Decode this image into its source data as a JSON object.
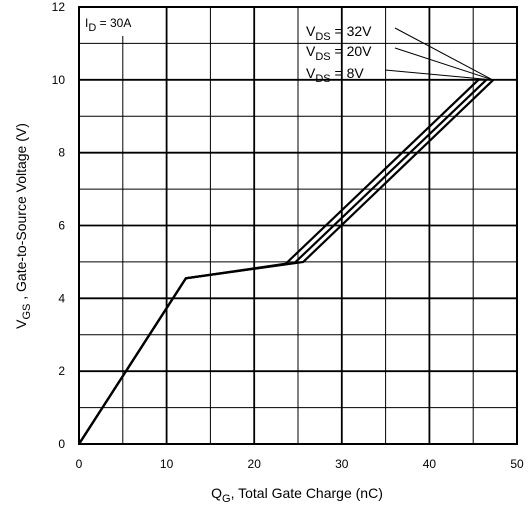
{
  "chart_data": {
    "type": "line",
    "xlabel": {
      "main": "Q",
      "sub": "G",
      "rest": ", Total Gate Charge (nC)"
    },
    "ylabel": {
      "main": "V",
      "sub": "GS",
      "rest": " , Gate-to-Source Voltage (V)"
    },
    "xlim": [
      0,
      50
    ],
    "ylim": [
      0,
      12
    ],
    "xticks": [
      0,
      10,
      20,
      30,
      40,
      50
    ],
    "yticks": [
      0,
      2,
      4,
      6,
      8,
      10,
      12
    ],
    "x_minor_step": 5,
    "y_minor_step": 1,
    "grid": true,
    "annotation": {
      "main": "I",
      "sub": "D",
      "rest": " = 30A"
    },
    "series": [
      {
        "name_main": "V",
        "name_sub": "DS",
        "name_rest": " = 32V",
        "x": [
          0,
          12.2,
          25.6,
          47.3
        ],
        "y": [
          0,
          4.55,
          5.0,
          10.0
        ]
      },
      {
        "name_main": "V",
        "name_sub": "DS",
        "name_rest": " = 20V",
        "x": [
          0,
          12.2,
          24.6,
          46.5
        ],
        "y": [
          0,
          4.55,
          4.97,
          10.0
        ]
      },
      {
        "name_main": "V",
        "name_sub": "DS",
        "name_rest": " = 8V",
        "x": [
          0,
          12.2,
          23.6,
          45.6
        ],
        "y": [
          0,
          4.55,
          4.95,
          10.0
        ]
      }
    ],
    "callout_target": {
      "x": 47.2,
      "y": 10.0
    }
  }
}
